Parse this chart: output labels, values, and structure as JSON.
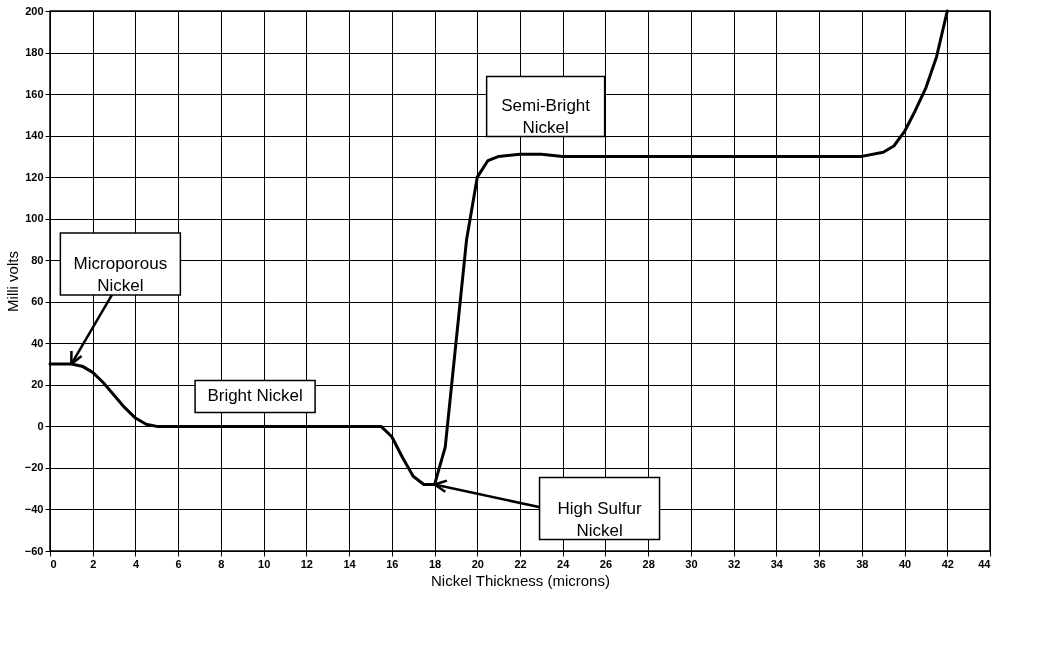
{
  "chart_data": {
    "type": "line",
    "xlabel": "Nickel Thickness (microns)",
    "ylabel": "Milli volts",
    "x": [
      0,
      1,
      1.5,
      2,
      2.5,
      3,
      3.5,
      4,
      4.5,
      5,
      8,
      12,
      14,
      15.5,
      16,
      16.5,
      17,
      17.5,
      18,
      18.5,
      19,
      19.5,
      20,
      20.5,
      21,
      22,
      23,
      24,
      30,
      38,
      39,
      39.5,
      40,
      40.5,
      41,
      41.5,
      42
    ],
    "series": [
      {
        "color": "#000000",
        "values": [
          30,
          30,
          29,
          26,
          21,
          15,
          9,
          4,
          1,
          0,
          0,
          0,
          0,
          0,
          -5,
          -15,
          -24,
          -28,
          -28,
          -10,
          40,
          90,
          120,
          128,
          130,
          131,
          131,
          130,
          130,
          130,
          132,
          135,
          142,
          152,
          163,
          178,
          200
        ]
      }
    ],
    "xlim": [
      0,
      44
    ],
    "xticks": [
      0,
      2,
      4,
      6,
      8,
      10,
      12,
      14,
      16,
      18,
      20,
      22,
      24,
      26,
      28,
      30,
      32,
      34,
      36,
      38,
      40,
      42,
      44
    ],
    "ylim": [
      -60,
      200
    ],
    "yticks": [
      -60,
      -40,
      -20,
      0,
      20,
      40,
      60,
      80,
      100,
      120,
      140,
      160,
      180,
      200
    ],
    "grid": true,
    "marker": "none",
    "line_style": "solid",
    "annotations": [
      {
        "text": "Microporous\nNickel",
        "x": 1,
        "y": 30
      },
      {
        "text": "Bright Nickel",
        "x": 9.6,
        "y": 0
      },
      {
        "text": "High Sulfur\nNickel",
        "x": 18,
        "y": -28
      },
      {
        "text": "Semi-Bright\nNickel",
        "x": 23.2,
        "y": 130
      }
    ]
  }
}
